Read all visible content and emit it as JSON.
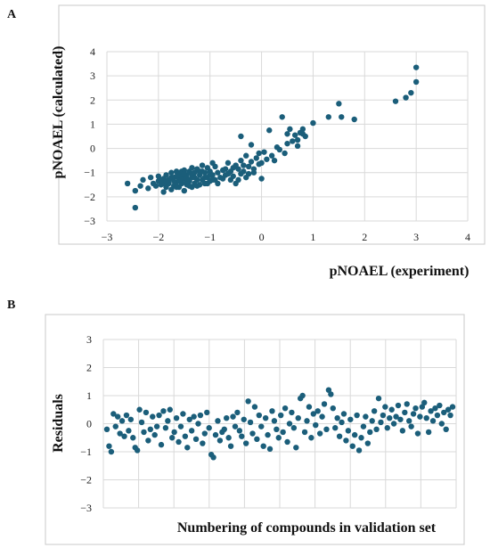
{
  "colors": {
    "marker": "#1b5e7a",
    "grid": "#d9d9d9",
    "frame": "#c8c8c8"
  },
  "chart_data": [
    {
      "panel": "A",
      "type": "scatter",
      "xlabel": "pNOAEL (experiment)",
      "ylabel": "pNOAEL (calculated)",
      "xlim": [
        -3,
        4
      ],
      "ylim": [
        -3,
        4
      ],
      "xticks": [
        "−3",
        "−2",
        "−1",
        "0",
        "1",
        "2",
        "3",
        "4"
      ],
      "yticks": [
        "−3",
        "−2",
        "−1",
        "0",
        "1",
        "2",
        "3",
        "4"
      ],
      "grid": true,
      "points": [
        [
          -2.6,
          -1.45
        ],
        [
          -2.45,
          -2.45
        ],
        [
          -2.45,
          -1.75
        ],
        [
          -2.35,
          -1.55
        ],
        [
          -2.3,
          -1.3
        ],
        [
          -2.2,
          -1.65
        ],
        [
          -2.15,
          -1.2
        ],
        [
          -2.1,
          -1.45
        ],
        [
          -2.05,
          -1.55
        ],
        [
          -2.0,
          -1.35
        ],
        [
          -1.95,
          -1.5
        ],
        [
          -1.9,
          -1.8
        ],
        [
          -1.9,
          -1.25
        ],
        [
          -1.85,
          -1.6
        ],
        [
          -1.85,
          -1.1
        ],
        [
          -1.8,
          -1.45
        ],
        [
          -1.8,
          -1.3
        ],
        [
          -1.75,
          -1.7
        ],
        [
          -1.75,
          -1.0
        ],
        [
          -1.7,
          -1.55
        ],
        [
          -1.7,
          -1.2
        ],
        [
          -1.65,
          -1.4
        ],
        [
          -1.65,
          -0.95
        ],
        [
          -1.6,
          -1.6
        ],
        [
          -1.6,
          -1.3
        ],
        [
          -1.6,
          -1.05
        ],
        [
          -1.55,
          -1.45
        ],
        [
          -1.55,
          -1.15
        ],
        [
          -1.5,
          -1.75
        ],
        [
          -1.5,
          -1.25
        ],
        [
          -1.5,
          -0.9
        ],
        [
          -1.45,
          -1.5
        ],
        [
          -1.45,
          -1.1
        ],
        [
          -1.4,
          -1.35
        ],
        [
          -1.4,
          -0.95
        ],
        [
          -1.35,
          -1.6
        ],
        [
          -1.35,
          -1.2
        ],
        [
          -1.3,
          -1.45
        ],
        [
          -1.3,
          -1.0
        ],
        [
          -1.25,
          -1.3
        ],
        [
          -1.25,
          -0.85
        ],
        [
          -1.2,
          -1.5
        ],
        [
          -1.2,
          -1.1
        ],
        [
          -1.15,
          -1.3
        ],
        [
          -1.15,
          -0.7
        ],
        [
          -1.1,
          -1.45
        ],
        [
          -1.1,
          -1.0
        ],
        [
          -1.05,
          -0.8
        ],
        [
          -1.05,
          -1.2
        ],
        [
          -1.0,
          -1.35
        ],
        [
          -1.0,
          -0.95
        ],
        [
          -0.95,
          -1.1
        ],
        [
          -0.9,
          -1.3
        ],
        [
          -0.9,
          -0.75
        ],
        [
          -0.85,
          -1.0
        ],
        [
          -0.8,
          -1.2
        ],
        [
          -0.75,
          -0.9
        ],
        [
          -0.7,
          -1.1
        ],
        [
          -0.65,
          -0.6
        ],
        [
          -0.6,
          -1.3
        ],
        [
          -0.6,
          -0.95
        ],
        [
          -0.55,
          -1.15
        ],
        [
          -0.5,
          -0.7
        ],
        [
          -0.5,
          -1.45
        ],
        [
          -0.45,
          -0.85
        ],
        [
          -0.4,
          -1.05
        ],
        [
          -0.4,
          -0.5
        ],
        [
          -0.35,
          -0.95
        ],
        [
          -0.3,
          -1.2
        ],
        [
          -0.3,
          -0.3
        ],
        [
          -0.25,
          -0.75
        ],
        [
          -0.2,
          -0.55
        ],
        [
          -0.15,
          -1.0
        ],
        [
          -0.1,
          -0.4
        ],
        [
          -0.05,
          -0.2
        ],
        [
          0.0,
          -1.25
        ],
        [
          0.0,
          -0.6
        ],
        [
          0.05,
          -0.15
        ],
        [
          0.1,
          -0.45
        ],
        [
          0.15,
          0.75
        ],
        [
          -0.4,
          0.5
        ],
        [
          -0.2,
          0.15
        ],
        [
          0.2,
          -0.3
        ],
        [
          0.35,
          -0.05
        ],
        [
          0.4,
          1.3
        ],
        [
          0.45,
          -0.2
        ],
        [
          0.5,
          0.2
        ],
        [
          0.55,
          0.8
        ],
        [
          0.6,
          0.3
        ],
        [
          0.65,
          0.55
        ],
        [
          0.7,
          0.35
        ],
        [
          0.75,
          0.65
        ],
        [
          0.8,
          0.8
        ],
        [
          0.85,
          0.5
        ],
        [
          1.0,
          1.05
        ],
        [
          1.3,
          1.3
        ],
        [
          1.5,
          1.85
        ],
        [
          1.55,
          1.3
        ],
        [
          1.8,
          1.2
        ],
        [
          2.6,
          1.95
        ],
        [
          2.8,
          2.1
        ],
        [
          2.9,
          2.3
        ],
        [
          3.0,
          2.75
        ],
        [
          3.0,
          3.35
        ],
        [
          -1.65,
          -1.15
        ],
        [
          -1.55,
          -0.95
        ],
        [
          -1.45,
          -1.4
        ],
        [
          -1.35,
          -1.05
        ],
        [
          -1.25,
          -1.55
        ],
        [
          -1.15,
          -0.95
        ],
        [
          -1.05,
          -1.45
        ],
        [
          -0.95,
          -0.6
        ],
        [
          -0.85,
          -1.45
        ],
        [
          -0.75,
          -1.25
        ],
        [
          -0.7,
          -0.85
        ],
        [
          -0.65,
          -1.05
        ],
        [
          -0.55,
          -0.8
        ],
        [
          -0.45,
          -1.3
        ],
        [
          -0.35,
          -0.7
        ],
        [
          -0.25,
          -1.05
        ],
        [
          -0.15,
          -0.85
        ],
        [
          -0.05,
          -0.65
        ],
        [
          0.25,
          -0.5
        ],
        [
          0.3,
          0.05
        ],
        [
          0.5,
          0.6
        ],
        [
          0.7,
          0.1
        ],
        [
          0.8,
          0.6
        ],
        [
          -2.0,
          -1.15
        ],
        [
          -1.95,
          -1.3
        ],
        [
          -1.9,
          -1.45
        ],
        [
          -1.85,
          -1.35
        ],
        [
          -1.75,
          -1.2
        ],
        [
          -1.7,
          -1.35
        ],
        [
          -1.65,
          -1.6
        ],
        [
          -1.55,
          -1.3
        ],
        [
          -1.5,
          -1.05
        ],
        [
          -1.45,
          -1.25
        ],
        [
          -1.4,
          -1.55
        ],
        [
          -1.35,
          -0.8
        ],
        [
          -1.3,
          -1.2
        ],
        [
          -1.2,
          -0.95
        ],
        [
          -1.1,
          -1.2
        ],
        [
          -1.0,
          -1.1
        ],
        [
          -0.95,
          -1.3
        ]
      ]
    },
    {
      "panel": "B",
      "type": "scatter",
      "xlabel": "Numbering of compounds in validation set",
      "ylabel": "Residuals",
      "ylim": [
        -3,
        3
      ],
      "yticks": [
        "−3",
        "−2",
        "−1",
        "0",
        "1",
        "2",
        "3"
      ],
      "grid": true,
      "residuals": [
        -0.2,
        -0.8,
        -1.0,
        0.35,
        -0.1,
        0.25,
        -0.35,
        0.1,
        -0.45,
        0.3,
        -0.25,
        0.15,
        -0.5,
        -0.85,
        -0.95,
        0.5,
        0.05,
        -0.3,
        0.4,
        -0.6,
        -0.2,
        0.25,
        -0.4,
        -0.1,
        0.3,
        -0.75,
        0.45,
        -0.15,
        0.1,
        0.5,
        -0.5,
        -0.3,
        0.2,
        -0.65,
        -0.1,
        0.35,
        -0.45,
        -0.85,
        0.15,
        -0.25,
        0.25,
        -0.55,
        0.0,
        0.3,
        -0.7,
        -0.35,
        0.4,
        -0.15,
        -1.1,
        -1.2,
        -0.4,
        0.1,
        -0.6,
        -0.3,
        -0.2,
        0.2,
        -0.5,
        -0.8,
        0.25,
        -0.1,
        0.4,
        -0.25,
        -0.45,
        0.15,
        -0.7,
        0.8,
        0.05,
        -0.35,
        0.6,
        -0.55,
        0.3,
        -0.1,
        -0.8,
        0.2,
        -0.4,
        -0.9,
        0.45,
        0.1,
        -0.2,
        -0.5,
        0.3,
        -0.3,
        0.55,
        -0.65,
        0.0,
        0.4,
        -0.15,
        -0.85,
        0.2,
        0.9,
        1.0,
        -0.3,
        0.1,
        0.6,
        -0.5,
        0.35,
        -0.05,
        0.45,
        -0.35,
        0.25,
        0.7,
        -0.2,
        1.2,
        1.05,
        0.55,
        -0.15,
        0.2,
        -0.45,
        0.05,
        0.35,
        -0.6,
        -0.25,
        0.15,
        -0.8,
        -0.4,
        0.3,
        -0.95,
        -0.5,
        -0.1,
        0.25,
        -0.7,
        -0.3,
        0.1,
        0.45,
        -0.2,
        0.9,
        0.05,
        0.3,
        0.6,
        -0.15,
        0.2,
        0.5,
        0.0,
        0.25,
        0.65,
        0.15,
        -0.25,
        0.4,
        0.7,
        0.1,
        -0.1,
        0.35,
        0.55,
        -0.35,
        0.25,
        0.6,
        0.75,
        0.2,
        -0.3,
        0.45,
        0.1,
        0.55,
        0.3,
        0.65,
        0.0,
        0.4,
        -0.2,
        0.5,
        0.3,
        0.6
      ]
    }
  ],
  "panels": {
    "a_label": "A",
    "b_label": "B"
  }
}
